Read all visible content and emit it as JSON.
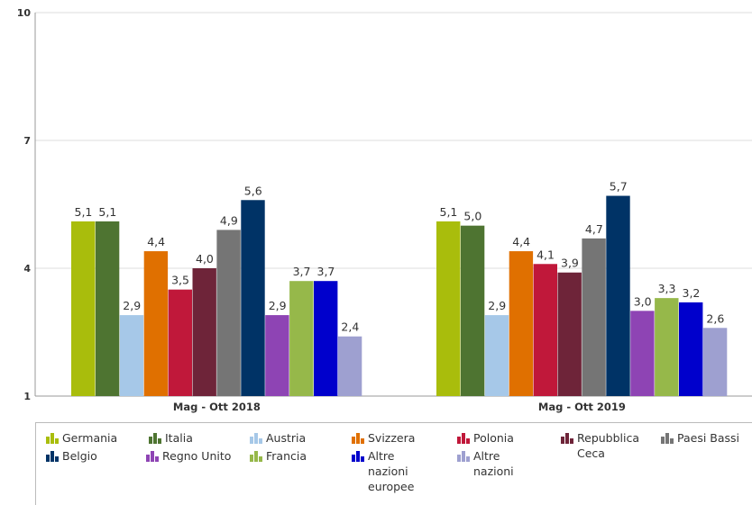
{
  "chart_data": {
    "type": "bar",
    "categories": [
      "Mag - Ott 2018",
      "Mag - Ott 2019"
    ],
    "ylim": [
      1,
      10
    ],
    "yticks": [
      "1",
      "4",
      "7",
      "10"
    ],
    "grid": true,
    "legend_position": "bottom",
    "series": [
      {
        "name": "Germania",
        "color": "#a9bd0c",
        "values": [
          5.1,
          5.1
        ],
        "labels": [
          "5,1",
          "5,1"
        ]
      },
      {
        "name": "Italia",
        "color": "#4e7431",
        "values": [
          5.1,
          5.0
        ],
        "labels": [
          "5,1",
          "5,0"
        ]
      },
      {
        "name": "Austria",
        "color": "#a6c8e8",
        "values": [
          2.9,
          2.9
        ],
        "labels": [
          "2,9",
          "2,9"
        ]
      },
      {
        "name": "Svizzera",
        "color": "#e07000",
        "values": [
          4.4,
          4.4
        ],
        "labels": [
          "4,4",
          "4,4"
        ]
      },
      {
        "name": "Polonia",
        "color": "#c0183a",
        "values": [
          3.5,
          4.1
        ],
        "labels": [
          "3,5",
          "4,1"
        ]
      },
      {
        "name": "Repubblica Ceca",
        "color": "#6e2439",
        "values": [
          4.0,
          3.9
        ],
        "labels": [
          "4,0",
          "3,9"
        ]
      },
      {
        "name": "Paesi Bassi",
        "color": "#757575",
        "values": [
          4.9,
          4.7
        ],
        "labels": [
          "4,9",
          "4,7"
        ]
      },
      {
        "name": "Belgio",
        "color": "#003366",
        "values": [
          5.6,
          5.7
        ],
        "labels": [
          "5,6",
          "5,7"
        ]
      },
      {
        "name": "Regno Unito",
        "color": "#8e44b4",
        "values": [
          2.9,
          3.0
        ],
        "labels": [
          "2,9",
          "3,0"
        ]
      },
      {
        "name": "Francia",
        "color": "#96b84a",
        "values": [
          3.7,
          3.3
        ],
        "labels": [
          "3,7",
          "3,3"
        ]
      },
      {
        "name": "Altre nazioni europee",
        "color": "#0000cc",
        "values": [
          3.7,
          3.2
        ],
        "labels": [
          "3,7",
          "3,2"
        ]
      },
      {
        "name": "Altre nazioni",
        "color": "#9ea0d0",
        "values": [
          2.4,
          2.6
        ],
        "labels": [
          "2,4",
          "2,6"
        ]
      }
    ]
  }
}
